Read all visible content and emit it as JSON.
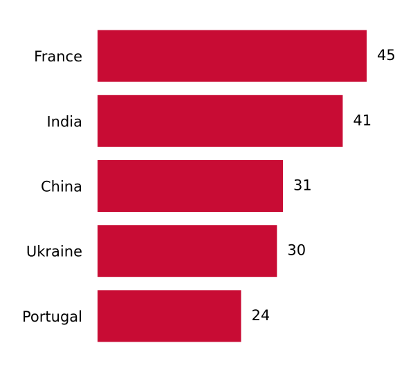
{
  "chart_data": {
    "type": "bar",
    "orientation": "horizontal",
    "categories": [
      "France",
      "India",
      "China",
      "Ukraine",
      "Portugal"
    ],
    "values": [
      45,
      41,
      31,
      30,
      24
    ],
    "color": "#c80c34"
  }
}
